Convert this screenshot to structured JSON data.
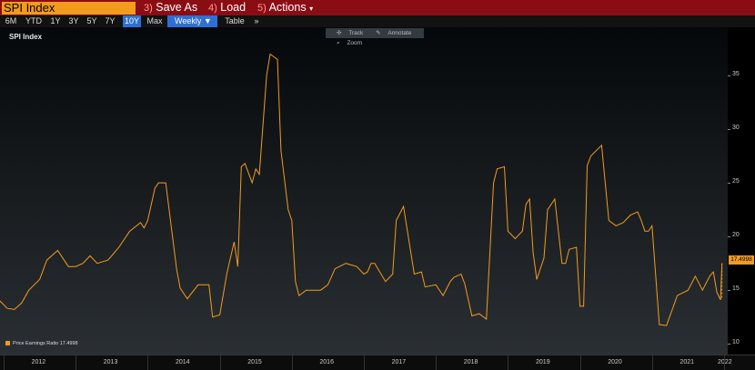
{
  "topbar": {
    "ticker": "SPI Index",
    "save_as": {
      "num": "3)",
      "label": "Save As"
    },
    "load": {
      "num": "4)",
      "label": "Load"
    },
    "actions": {
      "num": "5)",
      "label": "Actions",
      "arrow": "▾"
    }
  },
  "toolbar": {
    "ranges": [
      "6M",
      "YTD",
      "1Y",
      "3Y",
      "5Y",
      "7Y",
      "10Y",
      "Max"
    ],
    "active_range": "10Y",
    "frequency": "Weekly ▼",
    "table": "Table",
    "more": "»"
  },
  "chart_tools": {
    "track": "Track",
    "annotate": "Annotate",
    "zoom": "Zoom"
  },
  "chart_title": "SPI Index",
  "legend": {
    "name": "Price Earnings Ratio",
    "value": "17.4998"
  },
  "last_value_badge": "17.4998",
  "colors": {
    "line": "#f29b1d",
    "accent_blue": "#2d6fd6",
    "topbar": "#8b0d14"
  },
  "chart_data": {
    "type": "line",
    "title": "SPI Index",
    "series": [
      {
        "name": "Price Earnings Ratio",
        "x": [
          2011.95,
          2012.05,
          2012.15,
          2012.25,
          2012.35,
          2012.5,
          2012.6,
          2012.75,
          2012.9,
          2013.0,
          2013.1,
          2013.2,
          2013.3,
          2013.45,
          2013.6,
          2013.75,
          2013.9,
          2013.95,
          2014.0,
          2014.1,
          2014.15,
          2014.25,
          2014.4,
          2014.45,
          2014.55,
          2014.7,
          2014.85,
          2014.9,
          2015.0,
          2015.1,
          2015.2,
          2015.25,
          2015.3,
          2015.35,
          2015.45,
          2015.5,
          2015.55,
          2015.65,
          2015.7,
          2015.8,
          2015.85,
          2015.95,
          2016.0,
          2016.05,
          2016.1,
          2016.2,
          2016.4,
          2016.5,
          2016.6,
          2016.75,
          2016.9,
          2017.0,
          2017.05,
          2017.1,
          2017.15,
          2017.3,
          2017.4,
          2017.45,
          2017.55,
          2017.7,
          2017.8,
          2017.85,
          2018.0,
          2018.1,
          2018.2,
          2018.25,
          2018.35,
          2018.4,
          2018.5,
          2018.6,
          2018.7,
          2018.8,
          2018.85,
          2018.95,
          2019.0,
          2019.1,
          2019.2,
          2019.25,
          2019.3,
          2019.35,
          2019.4,
          2019.5,
          2019.55,
          2019.65,
          2019.75,
          2019.8,
          2019.85,
          2019.95,
          2020.0,
          2020.05,
          2020.1,
          2020.15,
          2020.3,
          2020.4,
          2020.5,
          2020.6,
          2020.7,
          2020.8,
          2020.85,
          2020.9,
          2020.95,
          2021.0,
          2021.1,
          2021.2,
          2021.35,
          2021.5,
          2021.6,
          2021.7,
          2021.8,
          2021.85,
          2021.9,
          2021.95,
          2021.97
        ],
        "y": [
          14,
          13.3,
          13.2,
          13.8,
          15,
          16,
          17.8,
          18.7,
          17.2,
          17.2,
          17.5,
          18.2,
          17.5,
          17.8,
          19,
          20.5,
          21.3,
          20.8,
          21.5,
          24.5,
          25,
          25,
          17,
          15.2,
          14.2,
          15.5,
          15.5,
          12.5,
          12.7,
          16.6,
          19.5,
          17.2,
          26.5,
          26.8,
          25,
          26.3,
          25.8,
          35,
          37,
          36.5,
          28,
          22.5,
          21.5,
          15.8,
          14.5,
          15,
          15,
          15.5,
          17,
          17.5,
          17.2,
          16.5,
          16.7,
          17.5,
          17.5,
          15.8,
          16.5,
          21.5,
          22.8,
          16.5,
          16.7,
          15.3,
          15.5,
          14.5,
          15.8,
          16.2,
          16.5,
          15.6,
          12.6,
          12.8,
          12.3,
          25,
          26.3,
          26.5,
          20.5,
          19.8,
          20.5,
          23,
          23.5,
          18.5,
          16,
          18,
          22.5,
          23.5,
          17.5,
          17.5,
          18.8,
          19,
          13.5,
          13.5,
          26.6,
          27.5,
          28.5,
          21.5,
          21,
          21.3,
          22,
          22.3,
          21.5,
          20.5,
          20.5,
          21,
          11.8,
          11.7,
          14.5,
          15,
          16.3,
          15,
          16.3,
          16.7,
          14.8,
          14.1,
          17.5
        ]
      }
    ],
    "xlim": [
      2011.95,
      2022.05
    ],
    "ylim": [
      9,
      39.5
    ],
    "yticks": [
      10,
      15,
      20,
      25,
      30,
      35
    ],
    "xtick_labels": [
      "2012",
      "2013",
      "2014",
      "2015",
      "2016",
      "2017",
      "2018",
      "2019",
      "2020",
      "2021",
      "2022"
    ],
    "grid": false,
    "legend_position": "bottom-left"
  }
}
